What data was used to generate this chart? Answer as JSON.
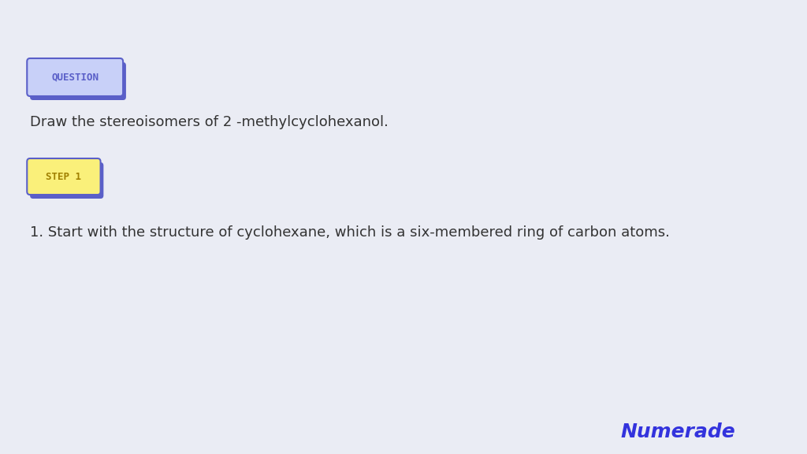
{
  "background_color": "#eaecf4",
  "question_label": "QUESTION",
  "question_label_color": "#5a5fc8",
  "question_box_face_color": "#c8d0f8",
  "question_box_edge_color": "#5a5fc8",
  "question_text": "Draw the stereoisomers of 2 -methylcyclohexanol.",
  "question_text_color": "#333333",
  "step_label": "STEP 1",
  "step_label_color": "#a08000",
  "step_box_face_color": "#faf07a",
  "step_box_edge_color": "#5a5fc8",
  "step_text": "1. Start with the structure of cyclohexane, which is a six-membered ring of carbon atoms.",
  "step_text_color": "#333333",
  "numerade_text": "Numerade",
  "numerade_color": "#3333dd",
  "title_bar_color": "#5a5fc8",
  "question_label_fontsize": 9,
  "question_text_fontsize": 13,
  "step_label_fontsize": 9,
  "step_text_fontsize": 13,
  "numerade_fontsize": 18
}
